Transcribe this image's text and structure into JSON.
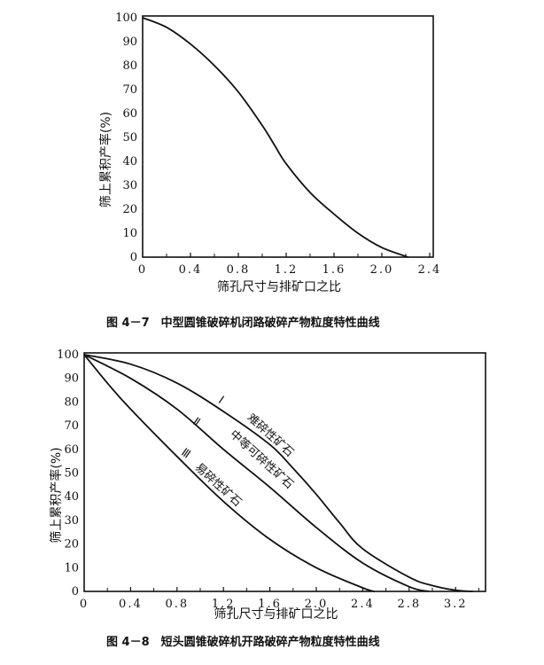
{
  "chart_data": [
    {
      "type": "line",
      "caption": "图 4－7　中型圆锥破碎机闭路破碎产物粒度特性曲线",
      "xlabel": "筛孔尺寸与排矿口之比",
      "ylabel": "筛上累积产率(%)",
      "xlim": [
        0,
        2.4
      ],
      "ylim": [
        0,
        100
      ],
      "xticks": [
        "0",
        "0.4",
        "0.8",
        "1.2",
        "1.6",
        "2.0",
        "2.4"
      ],
      "yticks": [
        "0",
        "10",
        "20",
        "30",
        "40",
        "50",
        "60",
        "70",
        "80",
        "90",
        "100"
      ],
      "grid": false,
      "series": [
        {
          "x": [
            0,
            0.2,
            0.4,
            0.6,
            0.8,
            1.0,
            1.1,
            1.2,
            1.4,
            1.6,
            1.8,
            2.0,
            2.22
          ],
          "y": [
            100,
            96,
            89,
            80,
            69,
            55,
            47,
            39,
            27,
            18,
            10,
            4,
            0
          ]
        }
      ]
    },
    {
      "type": "line",
      "caption": "图 4－8　短头圆锥破碎机开路破碎产物粒度特性曲线",
      "xlabel": "筛孔尺寸与排矿口之比",
      "ylabel": "筛上累积产率(%)",
      "xlim": [
        0,
        3.46
      ],
      "ylim": [
        0,
        100
      ],
      "xticks": [
        "0",
        "0.4",
        "0.8",
        "1.2",
        "1.6",
        "2.0",
        "2.4",
        "2.8",
        "3.2"
      ],
      "yticks": [
        "0",
        "10",
        "20",
        "30",
        "40",
        "50",
        "60",
        "70",
        "80",
        "90",
        "100"
      ],
      "grid": false,
      "series": [
        {
          "name": "Ⅰ 难碎性矿石",
          "numeral": "Ⅰ",
          "label": "难碎性矿石",
          "x": [
            0,
            0.4,
            0.8,
            1.2,
            1.6,
            1.8,
            2.0,
            2.2,
            2.4,
            2.8,
            3.0,
            3.2,
            3.35
          ],
          "y": [
            100,
            96,
            88,
            76,
            62,
            52,
            41,
            29,
            18,
            6,
            2.5,
            0.5,
            0
          ]
        },
        {
          "name": "Ⅱ 中等可碎性矿石",
          "numeral": "Ⅱ",
          "label": "中等可碎性矿石",
          "x": [
            0,
            0.4,
            0.8,
            1.2,
            1.6,
            2.0,
            2.4,
            2.8,
            2.97
          ],
          "y": [
            100,
            90,
            77,
            60,
            44,
            27,
            12,
            2,
            0
          ]
        },
        {
          "name": "Ⅲ 易碎性矿石",
          "numeral": "Ⅲ",
          "label": "易碎性矿石",
          "x": [
            0,
            0.2,
            0.4,
            0.8,
            1.2,
            1.6,
            2.0,
            2.4,
            2.5
          ],
          "y": [
            100,
            88,
            77,
            57,
            38,
            22,
            10,
            1.5,
            0
          ]
        }
      ]
    }
  ]
}
